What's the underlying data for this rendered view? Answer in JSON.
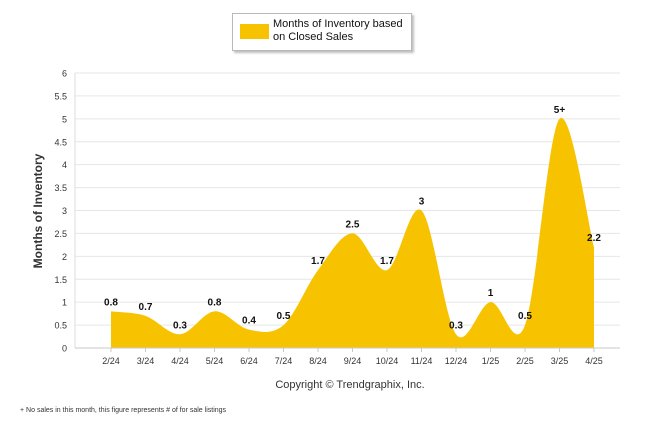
{
  "chart_data": {
    "type": "area",
    "categories": [
      "2/24",
      "3/24",
      "4/24",
      "5/24",
      "6/24",
      "7/24",
      "8/24",
      "9/24",
      "10/24",
      "11/24",
      "12/24",
      "1/25",
      "2/25",
      "3/25",
      "4/25"
    ],
    "series": [
      {
        "name": "Months of Inventory based on Closed Sales",
        "values": [
          0.8,
          0.7,
          0.3,
          0.8,
          0.4,
          0.5,
          1.7,
          2.5,
          1.7,
          3,
          0.3,
          1,
          0.5,
          5,
          2.2
        ],
        "data_labels": [
          "0.8",
          "0.7",
          "0.3",
          "0.8",
          "0.4",
          "0.5",
          "1.7",
          "2.5",
          "1.7",
          "3",
          "0.3",
          "1",
          "0.5",
          "5+",
          "2.2"
        ],
        "color": "#f7c300"
      }
    ],
    "ylabel": "Months of Inventory",
    "xlabel": "",
    "ylim": [
      0,
      6
    ],
    "yticks": [
      "0",
      "0.5",
      "1",
      "1.5",
      "2",
      "2.5",
      "3",
      "3.5",
      "4",
      "4.5",
      "5",
      "5.5",
      "6"
    ],
    "grid": true,
    "legend_position": "top-center",
    "credit": "Copyright © Trendgraphix, Inc.",
    "footnote_marker": "+",
    "footnote": "No sales in this month, this figure represents # of for sale listings",
    "colors": {
      "fill": "#f7c300",
      "grid": "#e6e6e6",
      "axis_text": "#333333"
    }
  }
}
